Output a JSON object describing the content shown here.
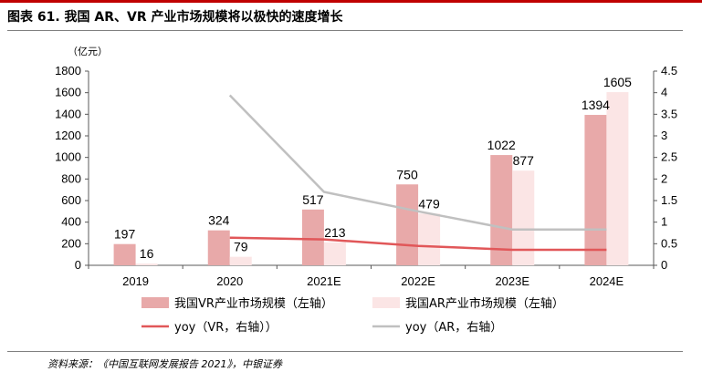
{
  "header": {
    "title": "图表 61. 我国 AR、VR 产业市场规模将以极快的速度增长"
  },
  "footer": {
    "source": "资料来源：《中国互联网发展报告 2021》，中银证券"
  },
  "colors": {
    "accent_red": "#c00000",
    "vr_bar": "#e8a9a9",
    "ar_bar": "#fbe5e5",
    "vr_yoy_line": "#e15759",
    "ar_yoy_line": "#c0c0c0"
  },
  "chart_data": {
    "type": "bar",
    "unit_label": "（亿元）",
    "categories": [
      "2019",
      "2020",
      "2021E",
      "2022E",
      "2023E",
      "2024E"
    ],
    "ylim_left": [
      0,
      1800
    ],
    "yticks_left": [
      0,
      200,
      400,
      600,
      800,
      1000,
      1200,
      1400,
      1600,
      1800
    ],
    "ylim_right": [
      0,
      4.5
    ],
    "yticks_right": [
      "0",
      "0.5",
      "1",
      "1.5",
      "2",
      "2.5",
      "3",
      "3.5",
      "4",
      "4.5"
    ],
    "grid": false,
    "series": [
      {
        "name": "我国VR产业市场规模（左轴）",
        "kind": "bar",
        "axis": "left",
        "values": [
          197,
          324,
          517,
          750,
          1022,
          1394
        ],
        "color": "#e8a9a9"
      },
      {
        "name": "我国AR产业市场规模（左轴）",
        "kind": "bar",
        "axis": "left",
        "values": [
          16,
          79,
          213,
          479,
          877,
          1605
        ],
        "color": "#fbe5e5"
      },
      {
        "name": "yoy（VR，右轴））",
        "kind": "line",
        "axis": "right",
        "values": [
          null,
          0.64,
          0.6,
          0.45,
          0.36,
          0.36
        ],
        "color": "#e15759"
      },
      {
        "name": "yoy（AR，右轴）",
        "kind": "line",
        "axis": "right",
        "values": [
          null,
          3.94,
          1.7,
          1.25,
          0.83,
          0.83
        ],
        "color": "#c0c0c0"
      }
    ]
  }
}
